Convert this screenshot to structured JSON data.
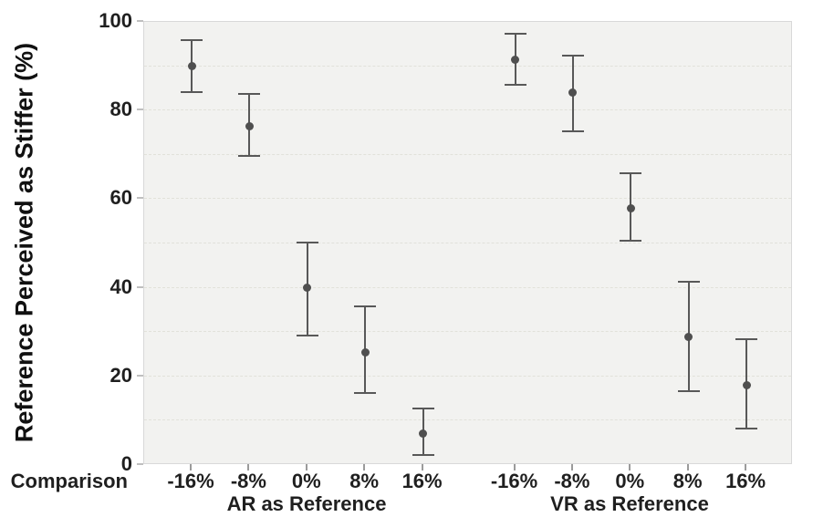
{
  "figure": {
    "title": "",
    "x_axis_label": "Comparison",
    "y_axis_label": "Reference Perceived as Stiffer (%)"
  },
  "chart_data": {
    "type": "scatter",
    "subtype": "point-estimates-with-error-bars",
    "title": "",
    "xlabel": "Comparison",
    "ylabel": "Reference Perceived as Stiffer (%)",
    "ylim": [
      0,
      100
    ],
    "yticks": [
      0,
      20,
      40,
      60,
      80,
      100
    ],
    "gridlines_every": 10,
    "grid_style": "dashed",
    "legend": "none",
    "categories": [
      "-16%",
      "-8%",
      "0%",
      "8%",
      "16%"
    ],
    "series": [
      {
        "name": "AR as Reference",
        "means": [
          90,
          76.5,
          40,
          25.5,
          7
        ],
        "ci_low": [
          84,
          69.5,
          29,
          16,
          2
        ],
        "ci_high": [
          96,
          84,
          50.5,
          36,
          13
        ]
      },
      {
        "name": "VR as Reference",
        "means": [
          91.5,
          84,
          58,
          29,
          18
        ],
        "ci_low": [
          85.5,
          75,
          50.5,
          16.5,
          8
        ],
        "ci_high": [
          97.5,
          92.5,
          66,
          41.5,
          28.5
        ]
      }
    ],
    "colors": {
      "point": "#4f4f4f",
      "errorbar": "#585858",
      "panel_background": "#f2f2f0",
      "panel_border": "#d9d9d9",
      "gridline": "#e1e1da",
      "text": "#1f1f1f"
    }
  }
}
